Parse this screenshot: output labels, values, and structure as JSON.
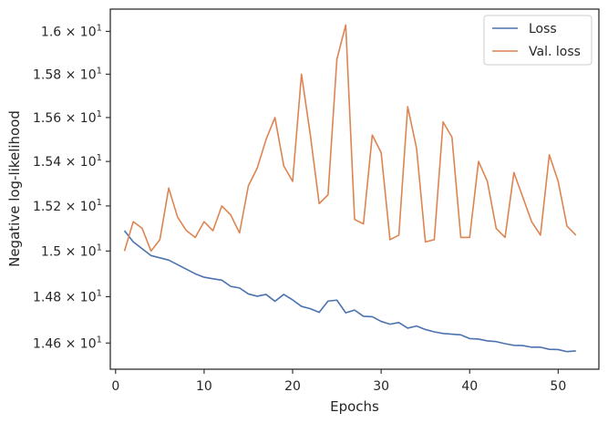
{
  "chart_data": {
    "type": "line",
    "xlabel": "Epochs",
    "ylabel": "Negative log-likelihood",
    "xlim": [
      -0.6,
      54.6
    ],
    "ylim": [
      14.488,
      16.105
    ],
    "y_scale": "log",
    "grid": false,
    "legend_position": "top-right",
    "x_ticks": [
      0,
      10,
      20,
      30,
      40,
      50
    ],
    "x_tick_labels": [
      "0",
      "10",
      "20",
      "30",
      "40",
      "50"
    ],
    "y_ticks": [
      14.6,
      14.8,
      15.0,
      15.2,
      15.4,
      15.6,
      15.8,
      16.0
    ],
    "y_tick_labels": [
      {
        "mantissa": "1.46",
        "exp": "1"
      },
      {
        "mantissa": "1.48",
        "exp": "1"
      },
      {
        "mantissa": "1.5",
        "exp": "1"
      },
      {
        "mantissa": "1.52",
        "exp": "1"
      },
      {
        "mantissa": "1.54",
        "exp": "1"
      },
      {
        "mantissa": "1.56",
        "exp": "1"
      },
      {
        "mantissa": "1.58",
        "exp": "1"
      },
      {
        "mantissa": "1.6",
        "exp": "1"
      }
    ],
    "x": [
      1,
      2,
      3,
      4,
      5,
      6,
      7,
      8,
      9,
      10,
      11,
      12,
      13,
      14,
      15,
      16,
      17,
      18,
      19,
      20,
      21,
      22,
      23,
      24,
      25,
      26,
      27,
      28,
      29,
      30,
      31,
      32,
      33,
      34,
      35,
      36,
      37,
      38,
      39,
      40,
      41,
      42,
      43,
      44,
      45,
      46,
      47,
      48,
      49,
      50,
      51,
      52
    ],
    "series": [
      {
        "name": "Loss",
        "color": "#4c72b0",
        "values": [
          15.09,
          15.04,
          15.01,
          14.98,
          14.97,
          14.96,
          14.94,
          14.92,
          14.9,
          14.885,
          14.878,
          14.872,
          14.845,
          14.838,
          14.812,
          14.802,
          14.81,
          14.78,
          14.81,
          14.786,
          14.758,
          14.748,
          14.732,
          14.781,
          14.785,
          14.73,
          14.742,
          14.715,
          14.713,
          14.693,
          14.681,
          14.688,
          14.664,
          14.673,
          14.658,
          14.648,
          14.641,
          14.638,
          14.635,
          14.619,
          14.617,
          14.609,
          14.606,
          14.597,
          14.59,
          14.589,
          14.582,
          14.582,
          14.573,
          14.572,
          14.563,
          14.566
        ]
      },
      {
        "name": "Val. loss",
        "color": "#dd8452",
        "values": [
          15.0,
          15.13,
          15.1,
          15.0,
          15.05,
          15.28,
          15.15,
          15.09,
          15.06,
          15.13,
          15.09,
          15.2,
          15.16,
          15.08,
          15.29,
          15.37,
          15.5,
          15.6,
          15.38,
          15.31,
          15.8,
          15.52,
          15.21,
          15.25,
          15.87,
          16.03,
          15.14,
          15.12,
          15.52,
          15.44,
          15.05,
          15.07,
          15.65,
          15.46,
          15.04,
          15.05,
          15.58,
          15.51,
          15.06,
          15.06,
          15.4,
          15.31,
          15.1,
          15.06,
          15.35,
          15.24,
          15.13,
          15.07,
          15.43,
          15.31,
          15.11,
          15.07
        ]
      }
    ]
  }
}
